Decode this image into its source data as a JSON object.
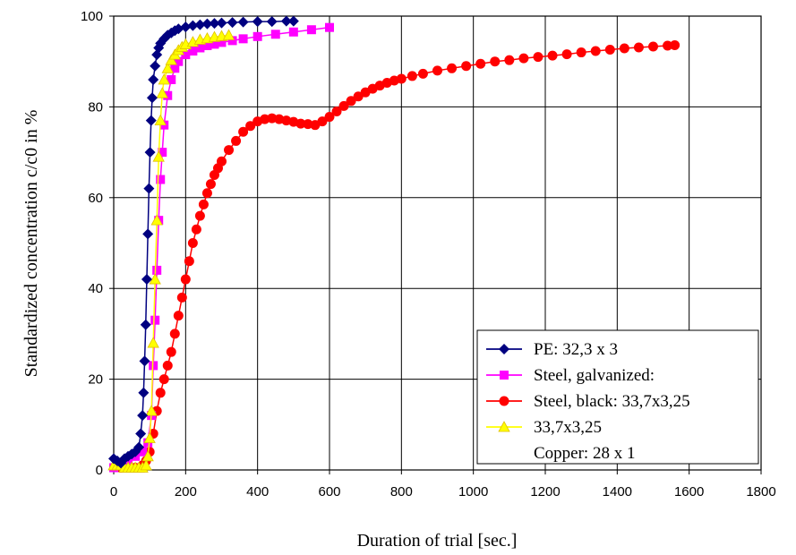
{
  "chart_data": {
    "type": "scatter",
    "xlabel": "Duration of trial [sec.]",
    "ylabel": "Standardized concentration c/c0 in %",
    "xlim": [
      0,
      1800
    ],
    "ylim": [
      0,
      100
    ],
    "xticks": [
      0,
      200,
      400,
      600,
      800,
      1000,
      1200,
      1400,
      1600,
      1800
    ],
    "yticks": [
      0,
      20,
      40,
      60,
      80,
      100
    ],
    "grid": true,
    "legend_position": "bottom-right",
    "series": [
      {
        "name": "PE: 32,3 x 3",
        "color": "#000080",
        "marker": "diamond",
        "x": [
          0,
          10,
          20,
          30,
          40,
          50,
          60,
          70,
          75,
          80,
          83,
          86,
          89,
          92,
          95,
          98,
          101,
          104,
          107,
          110,
          115,
          120,
          125,
          130,
          140,
          150,
          160,
          170,
          180,
          200,
          220,
          240,
          260,
          280,
          300,
          330,
          360,
          400,
          440,
          480,
          500
        ],
        "y": [
          2.5,
          2,
          1.5,
          2.5,
          3,
          3.5,
          4,
          5,
          8,
          12,
          17,
          24,
          32,
          42,
          52,
          62,
          70,
          77,
          82,
          86,
          89,
          91.5,
          93,
          94,
          95,
          95.8,
          96.3,
          96.8,
          97.2,
          97.6,
          97.9,
          98.1,
          98.3,
          98.4,
          98.5,
          98.6,
          98.7,
          98.8,
          98.8,
          98.9,
          98.9
        ]
      },
      {
        "name": "Steel, galvanized:",
        "color": "#ff00ff",
        "marker": "square",
        "x": [
          0,
          20,
          40,
          60,
          80,
          95,
          105,
          110,
          115,
          120,
          125,
          130,
          135,
          140,
          150,
          160,
          170,
          180,
          200,
          220,
          240,
          260,
          280,
          300,
          330,
          360,
          400,
          450,
          500,
          550,
          600
        ],
        "y": [
          0.5,
          1,
          2,
          3,
          4,
          6,
          12,
          23,
          33,
          44,
          55,
          64,
          70,
          76,
          82.5,
          86,
          88.5,
          90,
          91.5,
          92.3,
          93,
          93.5,
          93.8,
          94.2,
          94.6,
          95,
          95.5,
          96,
          96.5,
          97,
          97.5
        ]
      },
      {
        "name": "Steel, black: 33,7x3,25",
        "color": "#ff0000",
        "marker": "circle",
        "x": [
          20,
          40,
          60,
          80,
          90,
          100,
          110,
          120,
          130,
          140,
          150,
          160,
          170,
          180,
          190,
          200,
          210,
          220,
          230,
          240,
          250,
          260,
          270,
          280,
          290,
          300,
          320,
          340,
          360,
          380,
          400,
          420,
          440,
          460,
          480,
          500,
          520,
          540,
          560,
          580,
          600,
          620,
          640,
          660,
          680,
          700,
          720,
          740,
          760,
          780,
          800,
          830,
          860,
          900,
          940,
          980,
          1020,
          1060,
          1100,
          1140,
          1180,
          1220,
          1260,
          1300,
          1340,
          1380,
          1420,
          1460,
          1500,
          1540,
          1560
        ],
        "y": [
          0.5,
          0.5,
          0.5,
          1,
          2,
          4,
          8,
          13,
          17,
          20,
          23,
          26,
          30,
          34,
          38,
          42,
          46,
          50,
          53,
          56,
          58.5,
          61,
          63,
          65,
          66.5,
          68,
          70.5,
          72.5,
          74.5,
          75.8,
          76.8,
          77.3,
          77.5,
          77.3,
          77,
          76.7,
          76.3,
          76.2,
          76,
          76.8,
          77.8,
          79,
          80.2,
          81.3,
          82.3,
          83.2,
          84,
          84.7,
          85.3,
          85.8,
          86.2,
          86.8,
          87.3,
          88,
          88.5,
          89,
          89.5,
          90,
          90.3,
          90.7,
          91,
          91.3,
          91.6,
          92,
          92.3,
          92.6,
          92.9,
          93.1,
          93.3,
          93.5,
          93.6
        ]
      },
      {
        "name": "33,7x3,25",
        "color": "#ffff00",
        "marker": "triangle",
        "x": [
          0,
          10,
          20,
          30,
          40,
          50,
          60,
          70,
          80,
          90,
          95,
          100,
          105,
          110,
          115,
          120,
          125,
          130,
          135,
          140,
          150,
          160,
          170,
          180,
          190,
          200,
          220,
          240,
          260,
          280,
          300,
          320
        ],
        "y": [
          1,
          1,
          1,
          0.5,
          0.5,
          0.5,
          0.5,
          0.5,
          0.5,
          1,
          3,
          7,
          13,
          28,
          42,
          55,
          69,
          77,
          83,
          86,
          88.5,
          90.3,
          91.5,
          92.5,
          93.2,
          93.8,
          94.3,
          94.8,
          95.1,
          95.4,
          95.6,
          95.8
        ]
      },
      {
        "name": "Copper: 28 x 1",
        "color": "#000000",
        "marker": "none",
        "x": [],
        "y": []
      }
    ]
  }
}
